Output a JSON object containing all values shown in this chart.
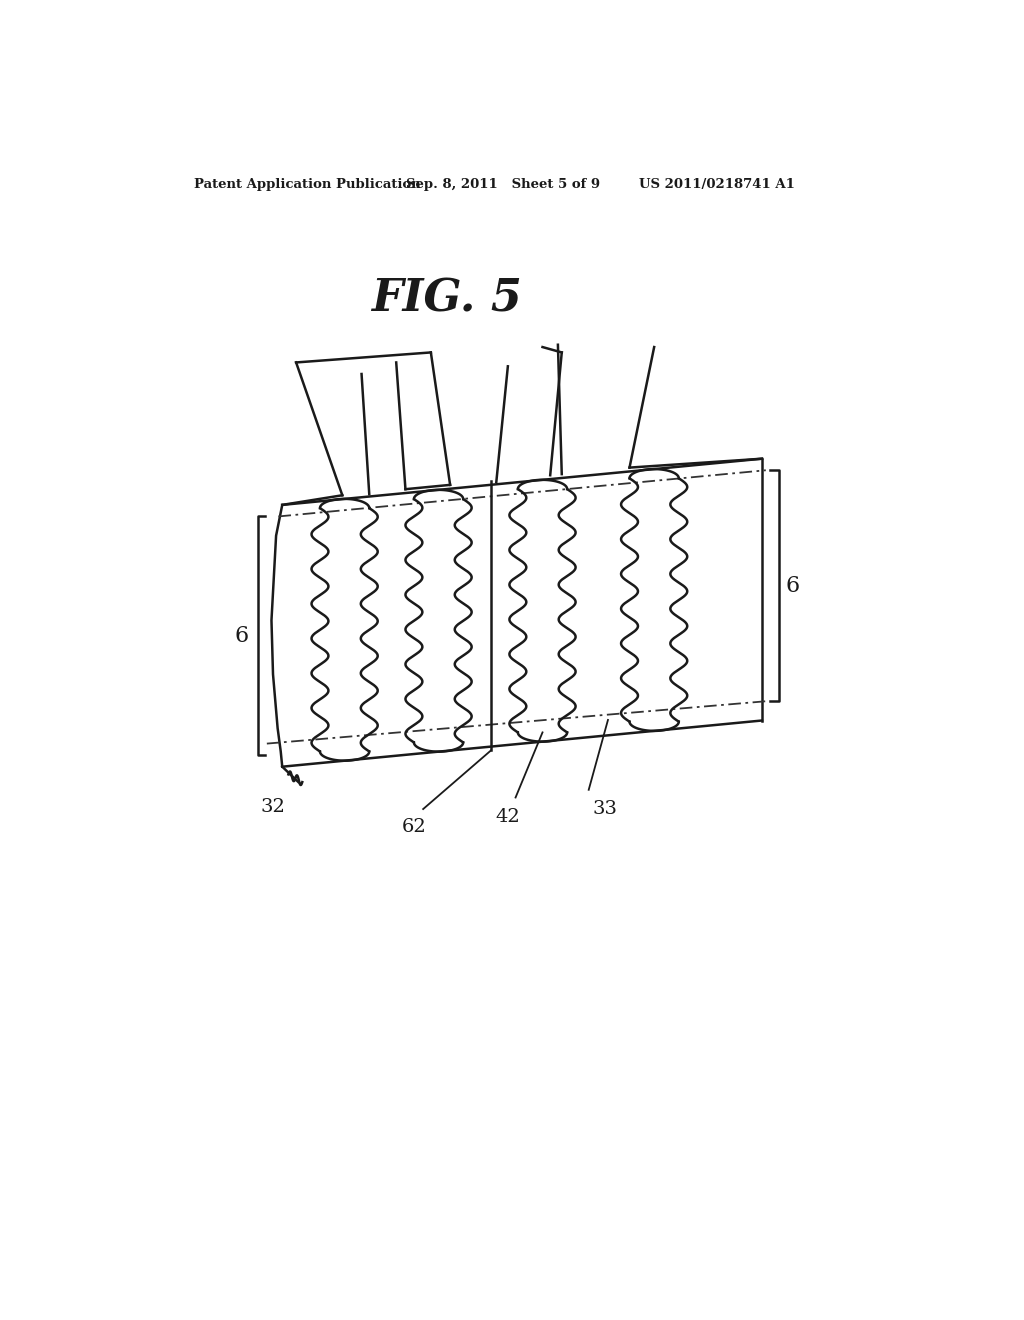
{
  "title": "FIG. 5",
  "header_left": "Patent Application Publication",
  "header_mid": "Sep. 8, 2011   Sheet 5 of 9",
  "header_right": "US 2011/0218741 A1",
  "bg_color": "#ffffff",
  "line_color": "#1a1a1a",
  "label_6_right": "6",
  "label_6_left": "6",
  "label_32": "32",
  "label_33": "33",
  "label_42": "42",
  "label_62": "62"
}
